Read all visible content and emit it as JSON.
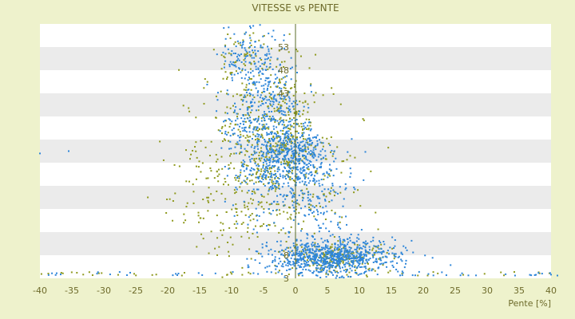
{
  "chart_data": {
    "type": "scatter",
    "title": "VITESSE vs PENTE",
    "xlabel": "Pente [%]",
    "ylabel": "",
    "xlim": [
      -40,
      40
    ],
    "ylim": [
      3,
      58
    ],
    "x_ticks": [
      -40,
      -35,
      -30,
      -25,
      -20,
      -15,
      -10,
      -5,
      0,
      5,
      10,
      15,
      20,
      25,
      30,
      35,
      40
    ],
    "y_tick_labels": [
      {
        "value": 53,
        "label": "53"
      },
      {
        "value": 48,
        "label": "48"
      },
      {
        "value": 43,
        "label": "43"
      },
      {
        "value": 8,
        "label": "8"
      },
      {
        "value": 3,
        "label": "3"
      }
    ],
    "background_bands": "alternating white / light grey every 5 units",
    "legend": "none",
    "colors": {
      "background": "#eef2cc",
      "band_light": "#ffffff",
      "band_grey": "#ebebeb",
      "series_blue": "#2e86d9",
      "series_olive": "#8f9a1f",
      "axis_text": "#6d6a2a",
      "zero_line": "#5a6b2a"
    },
    "series": [
      {
        "color": "#8f9a1f",
        "clusters": [
          {
            "x_mean": -6,
            "x_sd": 4.5,
            "y_mean": 30,
            "y_sd": 11,
            "n": 500
          },
          {
            "x_mean": -1,
            "x_sd": 2,
            "y_mean": 33,
            "y_sd": 6,
            "n": 180
          },
          {
            "x_mean": 7,
            "x_sd": 4,
            "y_mean": 7.5,
            "y_sd": 1.6,
            "n": 220
          },
          {
            "x_mean": 4,
            "x_sd": 5,
            "y_mean": 25,
            "y_sd": 7,
            "n": 80
          },
          {
            "x_mean": -15,
            "x_sd": 3,
            "y_mean": 20,
            "y_sd": 8,
            "n": 60
          },
          {
            "x_mean": -8,
            "x_sd": 2,
            "y_mean": 52,
            "y_sd": 3,
            "n": 40
          }
        ],
        "floor": {
          "y": 4,
          "x_range": [
            -40,
            40
          ],
          "n": 45
        }
      },
      {
        "color": "#2e86d9",
        "clusters": [
          {
            "x_mean": -5,
            "x_sd": 3,
            "y_mean": 36,
            "y_sd": 10,
            "n": 650
          },
          {
            "x_mean": 0,
            "x_sd": 2.5,
            "y_mean": 29,
            "y_sd": 4,
            "n": 320
          },
          {
            "x_mean": 5,
            "x_sd": 4.5,
            "y_mean": 7.5,
            "y_sd": 1.8,
            "n": 700
          },
          {
            "x_mean": 3.5,
            "x_sd": 3,
            "y_mean": 22,
            "y_sd": 6,
            "n": 180
          },
          {
            "x_mean": -8,
            "x_sd": 1.8,
            "y_mean": 52,
            "y_sd": 3,
            "n": 60
          },
          {
            "x_mean": 12,
            "x_sd": 4,
            "y_mean": 8,
            "y_sd": 2,
            "n": 90
          }
        ],
        "floor": {
          "y": 4,
          "x_range": [
            -40,
            40
          ],
          "n": 50
        },
        "outliers": [
          [
            -40,
            30
          ],
          [
            -35.5,
            30.5
          ],
          [
            40,
            3.8
          ],
          [
            41,
            3.6
          ]
        ]
      }
    ]
  }
}
